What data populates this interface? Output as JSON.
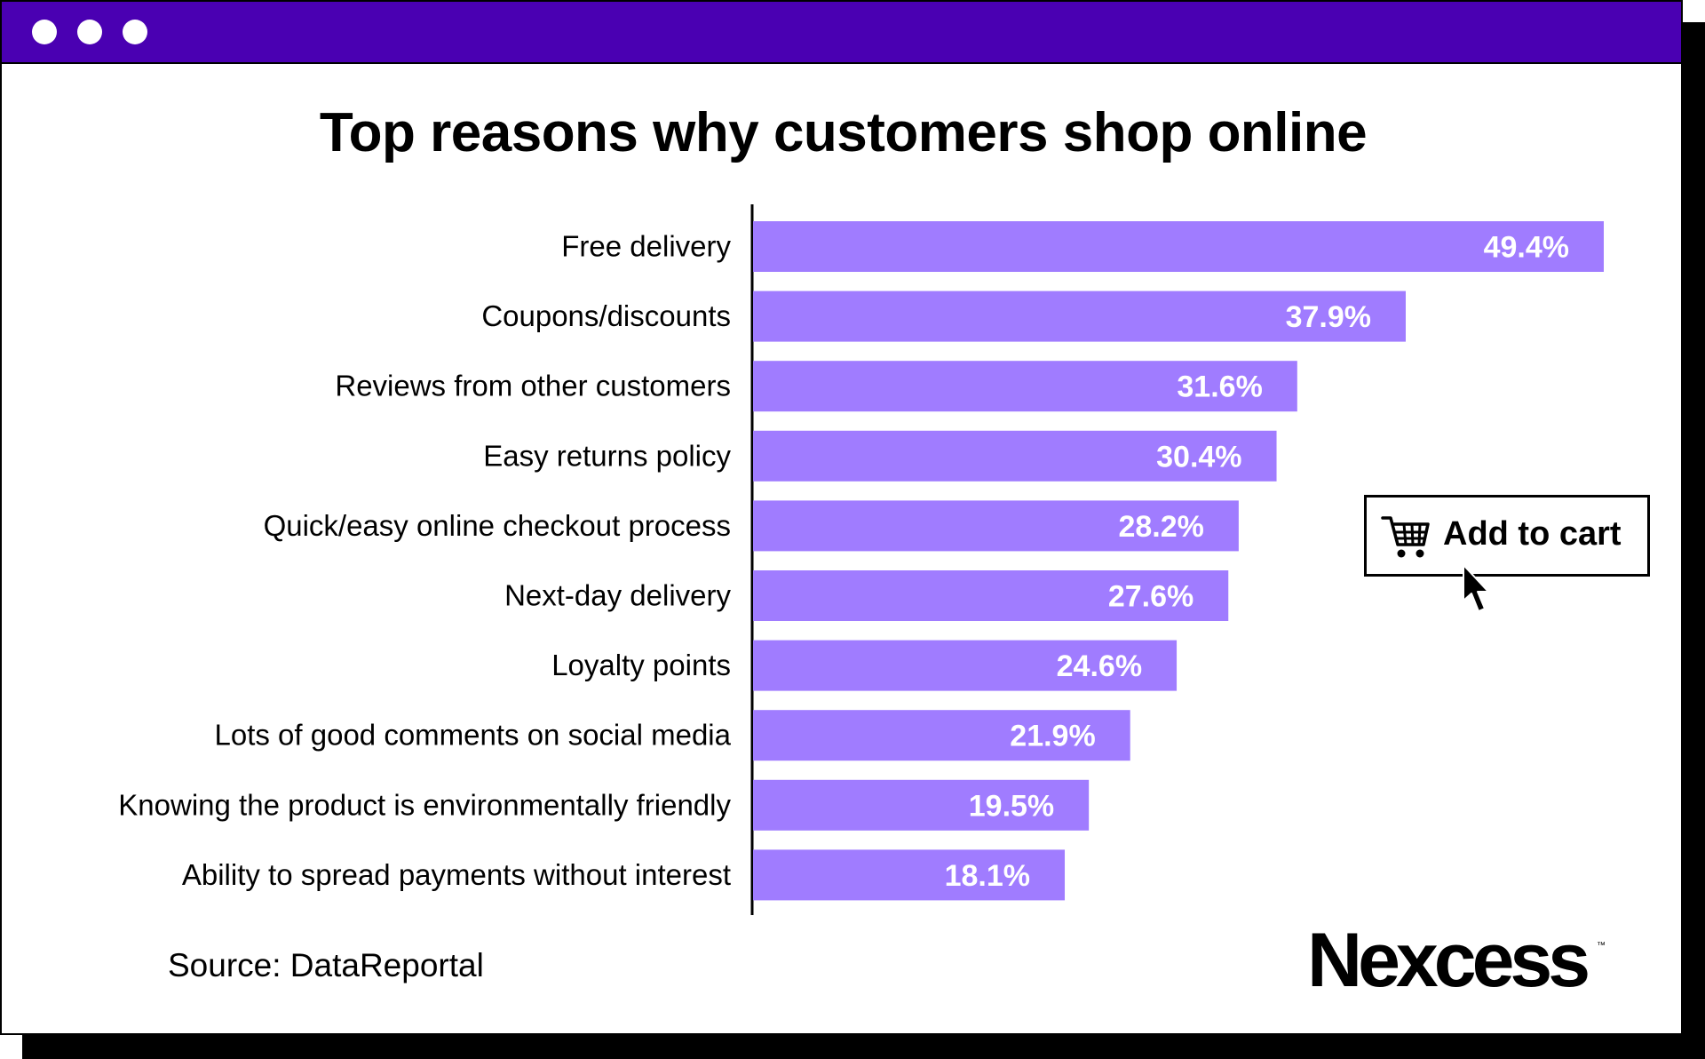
{
  "window": {
    "buttons": [
      "dot-1",
      "dot-2",
      "dot-3"
    ]
  },
  "footer": {
    "source": "Source: DataReportal",
    "logo": "Nexcess",
    "logo_tm": "™"
  },
  "overlay": {
    "button_label": "Add to cart",
    "button_icon": "shopping-cart-icon",
    "cursor_icon": "mouse-pointer-icon"
  },
  "colors": {
    "titlebar": "#4a00b2",
    "bar": "#a07cff",
    "bar_label": "#ffffff",
    "text": "#000000"
  },
  "chart_data": {
    "type": "bar",
    "orientation": "horizontal",
    "title": "Top reasons why customers shop online",
    "categories": [
      "Free delivery",
      "Coupons/discounts",
      "Reviews from other customers",
      "Easy returns policy",
      "Quick/easy online checkout process",
      "Next-day delivery",
      "Loyalty points",
      "Lots of good comments on social media",
      "Knowing the product is environmentally friendly",
      "Ability to spread payments without interest"
    ],
    "values": [
      49.4,
      37.9,
      31.6,
      30.4,
      28.2,
      27.6,
      24.6,
      21.9,
      19.5,
      18.1
    ],
    "value_labels": [
      "49.4%",
      "37.9%",
      "31.6%",
      "30.4%",
      "28.2%",
      "27.6%",
      "24.6%",
      "21.9%",
      "19.5%",
      "18.1%"
    ],
    "unit": "%",
    "xlim": [
      0,
      50
    ],
    "grid": false,
    "legend": "none"
  }
}
